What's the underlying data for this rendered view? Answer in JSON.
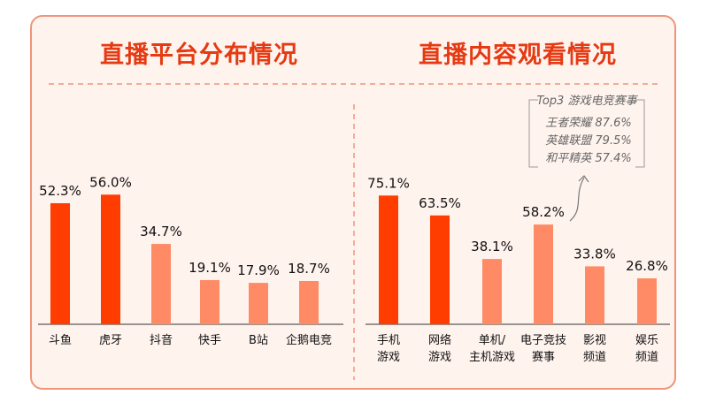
{
  "colors": {
    "primary": "#FF3D00",
    "secondary": "#FF8B66",
    "border": "#F0947A",
    "background": "#FFF3EE",
    "title": "#E53A12"
  },
  "chart_data": [
    {
      "type": "bar",
      "title": "直播平台分布情况",
      "categories": [
        "斗鱼",
        "虎牙",
        "抖音",
        "快手",
        "B站",
        "企鹅电竞"
      ],
      "values": [
        52.3,
        56.0,
        34.7,
        19.1,
        17.9,
        18.7
      ],
      "value_labels": [
        "52.3%",
        "56.0%",
        "34.7%",
        "19.1%",
        "17.9%",
        "18.7%"
      ],
      "highlight": [
        true,
        true,
        false,
        false,
        false,
        false
      ],
      "ylim": [
        0,
        100
      ]
    },
    {
      "type": "bar",
      "title": "直播内容观看情况",
      "categories": [
        "手机\n游戏",
        "网络\n游戏",
        "单机/\n主机游戏",
        "电子竞技\n赛事",
        "影视\n频道",
        "娱乐\n频道"
      ],
      "values": [
        75.1,
        63.5,
        38.1,
        58.2,
        33.8,
        26.8
      ],
      "value_labels": [
        "75.1%",
        "63.5%",
        "38.1%",
        "58.2%",
        "33.8%",
        "26.8%"
      ],
      "highlight": [
        true,
        true,
        false,
        false,
        false,
        false
      ],
      "ylim": [
        0,
        100
      ],
      "annotation": {
        "title": "Top3 游戏电竞赛事",
        "items": [
          "王者荣耀 87.6%",
          "英雄联盟 79.5%",
          "和平精英 57.4%"
        ],
        "points_to": "电子竞技\n赛事"
      }
    }
  ]
}
